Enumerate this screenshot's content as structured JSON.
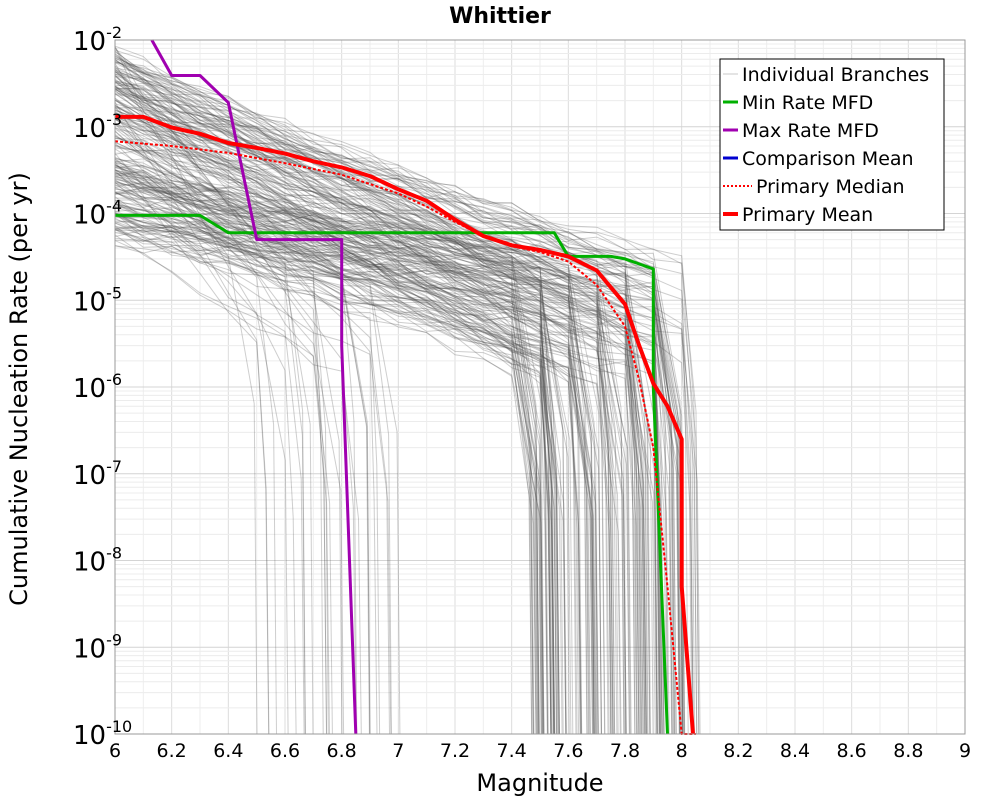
{
  "chart_data": {
    "type": "line",
    "title": "Whittier",
    "xlabel": "Magnitude",
    "ylabel": "Cumulative Nucleation Rate (per yr)",
    "xlim": [
      6,
      9
    ],
    "ylim": [
      1e-10,
      0.01
    ],
    "yscale": "log",
    "grid": true,
    "legend_position": "top-right",
    "x_ticks": [
      "6",
      "6.2",
      "6.4",
      "6.6",
      "6.8",
      "7",
      "7.2",
      "7.4",
      "7.6",
      "7.8",
      "8",
      "8.2",
      "8.4",
      "8.6",
      "8.8",
      "9"
    ],
    "y_ticks": [
      {
        "base": "10",
        "exp": "-2"
      },
      {
        "base": "10",
        "exp": "-3"
      },
      {
        "base": "10",
        "exp": "-4"
      },
      {
        "base": "10",
        "exp": "-5"
      },
      {
        "base": "10",
        "exp": "-6"
      },
      {
        "base": "10",
        "exp": "-7"
      },
      {
        "base": "10",
        "exp": "-8"
      },
      {
        "base": "10",
        "exp": "-9"
      },
      {
        "base": "10",
        "exp": "-10"
      }
    ],
    "legend": [
      {
        "label": "Individual Branches",
        "color": "#c8c8c8",
        "style": "solid-thin"
      },
      {
        "label": "Min Rate MFD",
        "color": "#00b000",
        "style": "solid"
      },
      {
        "label": "Max Rate MFD",
        "color": "#a000b0",
        "style": "solid"
      },
      {
        "label": "Comparison Mean",
        "color": "#0000d0",
        "style": "solid"
      },
      {
        "label": "Primary Median",
        "color": "#ff0000",
        "style": "dotted"
      },
      {
        "label": "Primary Mean",
        "color": "#ff0000",
        "style": "solid-thick"
      }
    ],
    "series": [
      {
        "name": "Min Rate MFD",
        "color": "#00b000",
        "x": [
          6.0,
          6.3,
          6.4,
          7.5,
          7.55,
          7.6,
          7.75,
          7.8,
          7.9,
          7.9,
          7.95
        ],
        "y": [
          9.5e-05,
          9.5e-05,
          6e-05,
          6e-05,
          6e-05,
          3.2e-05,
          3.2e-05,
          3e-05,
          2.3e-05,
          1e-06,
          1e-10
        ]
      },
      {
        "name": "Max Rate MFD",
        "color": "#a000b0",
        "x": [
          6.13,
          6.2,
          6.3,
          6.4,
          6.5,
          6.8,
          6.8,
          6.85
        ],
        "y": [
          0.01,
          0.0039,
          0.0039,
          0.0019,
          5e-05,
          5e-05,
          3e-06,
          1e-10
        ]
      },
      {
        "name": "Primary Median",
        "color": "#ff0000",
        "x": [
          6.0,
          6.2,
          6.4,
          6.6,
          6.8,
          7.0,
          7.1,
          7.2,
          7.3,
          7.4,
          7.5,
          7.6,
          7.7,
          7.8,
          7.85,
          7.9,
          7.95,
          8.0,
          8.02,
          8.05
        ],
        "y": [
          0.00068,
          0.0006,
          0.0005,
          0.00038,
          0.00028,
          0.00017,
          0.00012,
          8e-05,
          5.5e-05,
          4.2e-05,
          3.6e-05,
          2.8e-05,
          1.5e-05,
          5e-06,
          1.2e-06,
          2e-07,
          5e-09,
          1e-10,
          1e-10,
          1e-10
        ]
      },
      {
        "name": "Primary Mean",
        "color": "#ff0000",
        "x": [
          6.0,
          6.1,
          6.2,
          6.3,
          6.4,
          6.5,
          6.6,
          6.7,
          6.8,
          6.9,
          7.0,
          7.1,
          7.2,
          7.3,
          7.4,
          7.5,
          7.6,
          7.7,
          7.8,
          7.85,
          7.9,
          7.95,
          8.0,
          8.0,
          8.04
        ],
        "y": [
          0.0013,
          0.0013,
          0.00098,
          0.00083,
          0.00065,
          0.00057,
          0.00049,
          0.0004,
          0.00034,
          0.00027,
          0.00019,
          0.00014,
          8.5e-05,
          5.5e-05,
          4.3e-05,
          3.8e-05,
          3.2e-05,
          2.2e-05,
          9e-06,
          3e-06,
          1.1e-06,
          6e-07,
          2.5e-07,
          5e-09,
          1e-10
        ]
      }
    ]
  }
}
